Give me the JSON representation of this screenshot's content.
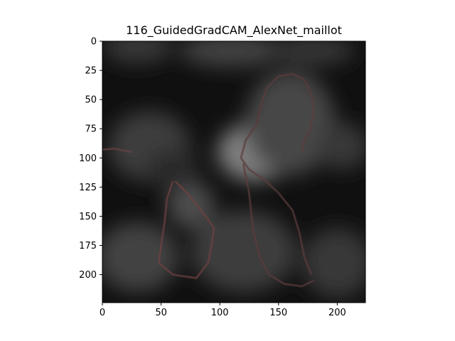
{
  "chart_data": {
    "type": "heatmap",
    "title": "116_GuidedGradCAM_AlexNet_maillot",
    "xlabel": "",
    "ylabel": "",
    "xlim": [
      0,
      224
    ],
    "ylim": [
      224,
      0
    ],
    "x_ticks": [
      0,
      50,
      100,
      150,
      200
    ],
    "y_ticks": [
      0,
      25,
      50,
      75,
      100,
      125,
      150,
      175,
      200
    ],
    "grid": false,
    "colormap": "grayscale",
    "background_color": "#101010",
    "regions": [
      {
        "x": 30,
        "y": 5,
        "rx": 30,
        "ry": 14,
        "value": 0.22
      },
      {
        "x": 110,
        "y": 8,
        "rx": 45,
        "ry": 14,
        "value": 0.26
      },
      {
        "x": 180,
        "y": 8,
        "rx": 35,
        "ry": 12,
        "value": 0.22
      },
      {
        "x": 40,
        "y": 90,
        "rx": 35,
        "ry": 30,
        "value": 0.24
      },
      {
        "x": 130,
        "y": 95,
        "rx": 32,
        "ry": 25,
        "value": 0.5
      },
      {
        "x": 160,
        "y": 70,
        "rx": 38,
        "ry": 45,
        "value": 0.28
      },
      {
        "x": 205,
        "y": 90,
        "rx": 22,
        "ry": 20,
        "value": 0.22
      },
      {
        "x": 30,
        "y": 185,
        "rx": 35,
        "ry": 30,
        "value": 0.26
      },
      {
        "x": 120,
        "y": 180,
        "rx": 45,
        "ry": 35,
        "value": 0.24
      },
      {
        "x": 200,
        "y": 190,
        "rx": 30,
        "ry": 30,
        "value": 0.22
      },
      {
        "x": 75,
        "y": 140,
        "rx": 20,
        "ry": 20,
        "value": 0.3
      },
      {
        "x": 60,
        "y": 110,
        "rx": 22,
        "ry": 18,
        "value": 0.16
      }
    ],
    "contours": [
      {
        "name": "figure-head-outline",
        "color": "#5c3a3a",
        "points": [
          [
            132,
            70
          ],
          [
            135,
            55
          ],
          [
            140,
            40
          ],
          [
            150,
            30
          ],
          [
            162,
            28
          ],
          [
            172,
            33
          ],
          [
            178,
            45
          ],
          [
            180,
            60
          ],
          [
            177,
            75
          ],
          [
            172,
            85
          ],
          [
            170,
            95
          ]
        ]
      },
      {
        "name": "figure-torso-outline",
        "color": "#5c3a3a",
        "points": [
          [
            132,
            70
          ],
          [
            122,
            85
          ],
          [
            118,
            100
          ],
          [
            125,
            110
          ],
          [
            137,
            118
          ],
          [
            150,
            130
          ],
          [
            162,
            145
          ],
          [
            168,
            165
          ],
          [
            172,
            185
          ],
          [
            178,
            200
          ]
        ]
      },
      {
        "name": "figure-legs-outline",
        "color": "#5c3a3a",
        "points": [
          [
            120,
            105
          ],
          [
            125,
            130
          ],
          [
            128,
            160
          ],
          [
            134,
            185
          ],
          [
            142,
            200
          ],
          [
            155,
            208
          ],
          [
            170,
            210
          ],
          [
            180,
            205
          ]
        ]
      },
      {
        "name": "left-arm-outline",
        "color": "#6e4040",
        "points": [
          [
            60,
            120
          ],
          [
            55,
            135
          ],
          [
            53,
            155
          ],
          [
            50,
            175
          ],
          [
            48,
            190
          ],
          [
            60,
            200
          ],
          [
            80,
            203
          ],
          [
            90,
            190
          ],
          [
            93,
            175
          ],
          [
            95,
            160
          ],
          [
            88,
            150
          ],
          [
            80,
            140
          ],
          [
            72,
            130
          ],
          [
            62,
            120
          ]
        ]
      },
      {
        "name": "left-edge-line",
        "color": "#6a4242",
        "points": [
          [
            0,
            93
          ],
          [
            10,
            92
          ],
          [
            25,
            95
          ]
        ]
      }
    ]
  }
}
